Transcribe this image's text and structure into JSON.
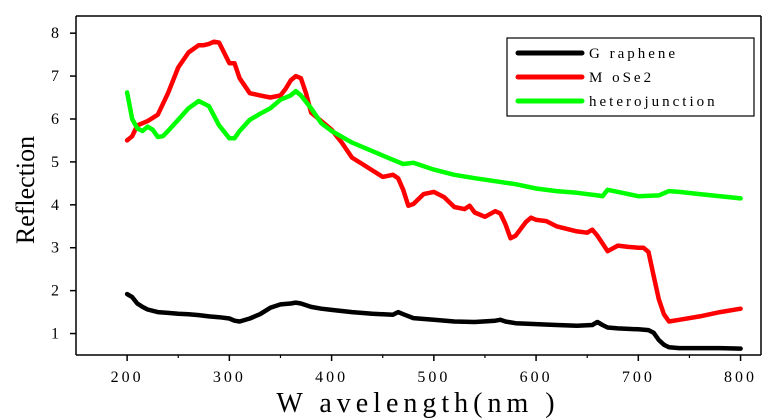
{
  "chart_data": {
    "type": "line",
    "title": "",
    "xlabel": "W avelength(nm )",
    "ylabel": "Reflection",
    "xlim": [
      150,
      820
    ],
    "ylim": [
      0.5,
      8.4
    ],
    "x_ticks": [
      200,
      300,
      400,
      500,
      600,
      700,
      800
    ],
    "y_ticks": [
      1,
      2,
      3,
      4,
      5,
      6,
      7,
      8
    ],
    "grid": false,
    "legend_position": "top-right",
    "series": [
      {
        "name": "G raphene",
        "color": "#000000",
        "x": [
          200,
          205,
          210,
          215,
          220,
          230,
          240,
          250,
          260,
          270,
          280,
          290,
          300,
          305,
          310,
          320,
          330,
          340,
          350,
          360,
          365,
          370,
          380,
          390,
          400,
          420,
          440,
          460,
          465,
          470,
          480,
          500,
          520,
          540,
          560,
          565,
          570,
          580,
          600,
          620,
          640,
          655,
          660,
          665,
          670,
          680,
          700,
          710,
          715,
          720,
          725,
          730,
          740,
          760,
          780,
          800
        ],
        "y": [
          1.92,
          1.85,
          1.7,
          1.62,
          1.56,
          1.5,
          1.48,
          1.46,
          1.45,
          1.43,
          1.4,
          1.38,
          1.35,
          1.3,
          1.28,
          1.35,
          1.45,
          1.6,
          1.68,
          1.7,
          1.72,
          1.7,
          1.62,
          1.58,
          1.55,
          1.5,
          1.46,
          1.44,
          1.5,
          1.45,
          1.36,
          1.32,
          1.28,
          1.27,
          1.3,
          1.32,
          1.28,
          1.24,
          1.22,
          1.2,
          1.18,
          1.2,
          1.27,
          1.2,
          1.14,
          1.12,
          1.1,
          1.08,
          1.02,
          0.85,
          0.74,
          0.68,
          0.66,
          0.66,
          0.66,
          0.65
        ]
      },
      {
        "name": "M oSe2",
        "color": "#ff0000",
        "x": [
          200,
          205,
          210,
          220,
          230,
          240,
          250,
          260,
          270,
          275,
          280,
          285,
          290,
          300,
          305,
          310,
          320,
          330,
          340,
          350,
          355,
          360,
          365,
          370,
          375,
          380,
          390,
          400,
          410,
          420,
          430,
          440,
          450,
          460,
          465,
          470,
          475,
          480,
          490,
          500,
          510,
          520,
          530,
          535,
          540,
          550,
          560,
          565,
          570,
          575,
          580,
          590,
          595,
          600,
          610,
          620,
          640,
          650,
          655,
          660,
          665,
          670,
          680,
          690,
          700,
          705,
          710,
          715,
          720,
          725,
          730,
          740,
          760,
          780,
          800
        ],
        "y": [
          5.5,
          5.6,
          5.85,
          5.95,
          6.1,
          6.6,
          7.2,
          7.55,
          7.72,
          7.72,
          7.75,
          7.8,
          7.78,
          7.3,
          7.3,
          6.95,
          6.6,
          6.55,
          6.5,
          6.55,
          6.7,
          6.9,
          7.0,
          6.95,
          6.6,
          6.15,
          5.95,
          5.75,
          5.45,
          5.1,
          4.95,
          4.8,
          4.65,
          4.7,
          4.62,
          4.35,
          3.98,
          4.02,
          4.25,
          4.3,
          4.18,
          3.95,
          3.9,
          3.98,
          3.82,
          3.72,
          3.85,
          3.8,
          3.55,
          3.22,
          3.28,
          3.6,
          3.7,
          3.65,
          3.62,
          3.5,
          3.38,
          3.35,
          3.42,
          3.28,
          3.1,
          2.92,
          3.05,
          3.02,
          3.0,
          3.0,
          2.9,
          2.35,
          1.8,
          1.45,
          1.28,
          1.32,
          1.4,
          1.5,
          1.58
        ]
      },
      {
        "name": "heterojunction",
        "color": "#00ff00",
        "x": [
          200,
          205,
          210,
          215,
          220,
          225,
          230,
          235,
          240,
          250,
          260,
          270,
          280,
          290,
          300,
          305,
          310,
          320,
          330,
          340,
          350,
          360,
          365,
          370,
          380,
          390,
          400,
          420,
          440,
          460,
          470,
          480,
          500,
          520,
          540,
          560,
          580,
          600,
          620,
          640,
          660,
          665,
          670,
          680,
          700,
          720,
          730,
          740,
          760,
          780,
          800
        ],
        "y": [
          6.62,
          6.0,
          5.78,
          5.72,
          5.82,
          5.75,
          5.58,
          5.6,
          5.72,
          5.98,
          6.25,
          6.42,
          6.3,
          5.85,
          5.55,
          5.55,
          5.72,
          5.98,
          6.12,
          6.25,
          6.45,
          6.55,
          6.65,
          6.55,
          6.25,
          5.9,
          5.72,
          5.45,
          5.25,
          5.05,
          4.95,
          4.98,
          4.82,
          4.7,
          4.62,
          4.55,
          4.48,
          4.38,
          4.32,
          4.28,
          4.22,
          4.2,
          4.35,
          4.3,
          4.2,
          4.22,
          4.32,
          4.3,
          4.25,
          4.2,
          4.15
        ]
      }
    ]
  }
}
